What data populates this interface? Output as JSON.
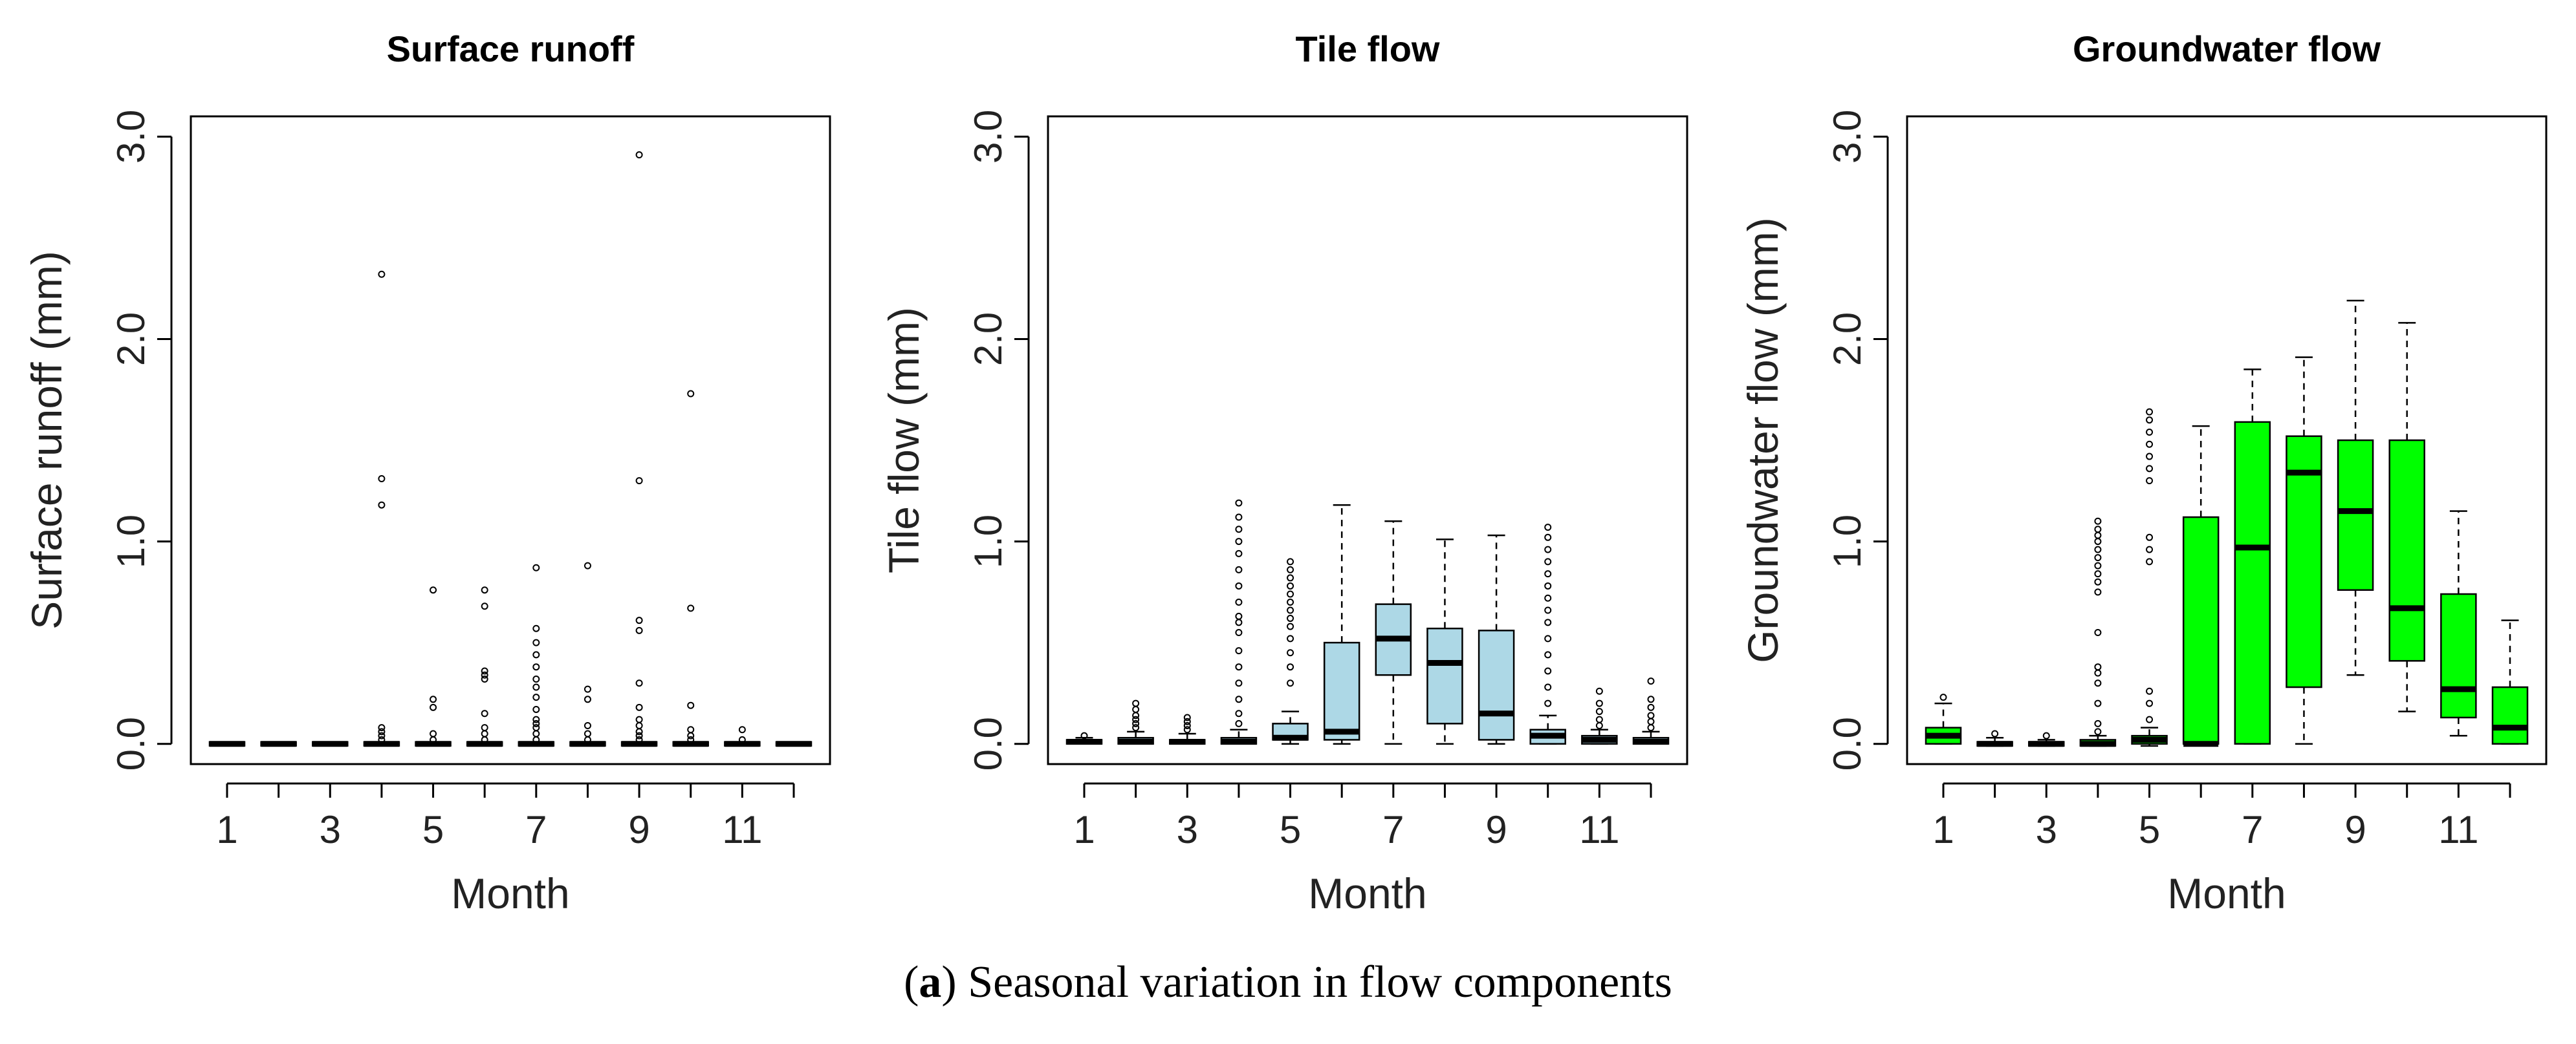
{
  "caption": {
    "letter": "a",
    "text": "Seasonal variation in flow components"
  },
  "chart_data": [
    {
      "type": "box",
      "title": "Surface runoff",
      "xlabel": "Month",
      "ylabel": "Surface runoff (mm)",
      "ylim": [
        -0.1,
        3.1
      ],
      "yticks": [
        0.0,
        1.0,
        2.0,
        3.0
      ],
      "ytick_labels": [
        "0.0",
        "1.0",
        "2.0",
        "3.0"
      ],
      "xtick_labels": [
        "1",
        "3",
        "5",
        "7",
        "9",
        "11"
      ],
      "fill": "#ffffff",
      "boxes": [
        {
          "month": 1,
          "q1": 0,
          "median": 0,
          "q3": 0,
          "whisker_low": 0,
          "whisker_high": 0,
          "outliers": []
        },
        {
          "month": 2,
          "q1": 0,
          "median": 0,
          "q3": 0,
          "whisker_low": 0,
          "whisker_high": 0,
          "outliers": []
        },
        {
          "month": 3,
          "q1": 0,
          "median": 0,
          "q3": 0,
          "whisker_low": 0,
          "whisker_high": 0,
          "outliers": []
        },
        {
          "month": 4,
          "q1": 0,
          "median": 0,
          "q3": 0,
          "whisker_low": 0,
          "whisker_high": 0,
          "outliers": [
            0.02,
            0.04,
            0.06,
            0.08,
            1.18,
            1.31,
            2.32
          ]
        },
        {
          "month": 5,
          "q1": 0,
          "median": 0,
          "q3": 0,
          "whisker_low": 0,
          "whisker_high": 0,
          "outliers": [
            0.02,
            0.05,
            0.18,
            0.22,
            0.76
          ]
        },
        {
          "month": 6,
          "q1": 0,
          "median": 0,
          "q3": 0,
          "whisker_low": 0,
          "whisker_high": 0,
          "outliers": [
            0.02,
            0.05,
            0.08,
            0.15,
            0.32,
            0.34,
            0.36,
            0.68,
            0.76
          ]
        },
        {
          "month": 7,
          "q1": 0,
          "median": 0,
          "q3": 0,
          "whisker_low": 0,
          "whisker_high": 0,
          "outliers": [
            0.02,
            0.05,
            0.08,
            0.1,
            0.12,
            0.17,
            0.23,
            0.28,
            0.32,
            0.38,
            0.44,
            0.5,
            0.57,
            0.87
          ]
        },
        {
          "month": 8,
          "q1": 0,
          "median": 0,
          "q3": 0,
          "whisker_low": 0,
          "whisker_high": 0,
          "outliers": [
            0.02,
            0.05,
            0.09,
            0.22,
            0.27,
            0.88
          ]
        },
        {
          "month": 9,
          "q1": 0,
          "median": 0,
          "q3": 0,
          "whisker_low": 0,
          "whisker_high": 0,
          "outliers": [
            0.02,
            0.04,
            0.06,
            0.09,
            0.12,
            0.18,
            0.3,
            0.56,
            0.61,
            1.3,
            2.91
          ]
        },
        {
          "month": 10,
          "q1": 0,
          "median": 0,
          "q3": 0,
          "whisker_low": 0,
          "whisker_high": 0,
          "outliers": [
            0.02,
            0.04,
            0.07,
            0.19,
            0.67,
            1.73
          ]
        },
        {
          "month": 11,
          "q1": 0,
          "median": 0,
          "q3": 0,
          "whisker_low": 0,
          "whisker_high": 0,
          "outliers": [
            0.02,
            0.07
          ]
        },
        {
          "month": 12,
          "q1": 0,
          "median": 0,
          "q3": 0,
          "whisker_low": 0,
          "whisker_high": 0,
          "outliers": []
        }
      ]
    },
    {
      "type": "box",
      "title": "Tile flow",
      "xlabel": "Month",
      "ylabel": "Tile flow (mm)",
      "ylim": [
        -0.1,
        3.1
      ],
      "yticks": [
        0.0,
        1.0,
        2.0,
        3.0
      ],
      "ytick_labels": [
        "0.0",
        "1.0",
        "2.0",
        "3.0"
      ],
      "xtick_labels": [
        "1",
        "3",
        "5",
        "7",
        "9",
        "11"
      ],
      "fill": "#add8e6",
      "boxes": [
        {
          "month": 1,
          "q1": 0.0,
          "median": 0.01,
          "q3": 0.02,
          "whisker_low": 0.0,
          "whisker_high": 0.03,
          "outliers": [
            0.04
          ]
        },
        {
          "month": 2,
          "q1": 0.0,
          "median": 0.01,
          "q3": 0.03,
          "whisker_low": 0.0,
          "whisker_high": 0.06,
          "outliers": [
            0.08,
            0.1,
            0.12,
            0.14,
            0.17,
            0.2
          ]
        },
        {
          "month": 3,
          "q1": 0.0,
          "median": 0.01,
          "q3": 0.02,
          "whisker_low": 0.0,
          "whisker_high": 0.05,
          "outliers": [
            0.07,
            0.09,
            0.11,
            0.13
          ]
        },
        {
          "month": 4,
          "q1": 0.0,
          "median": 0.01,
          "q3": 0.03,
          "whisker_low": 0.0,
          "whisker_high": 0.07,
          "outliers": [
            0.1,
            0.15,
            0.22,
            0.3,
            0.38,
            0.46,
            0.55,
            0.6,
            0.63,
            0.7,
            0.78,
            0.86,
            0.94,
            1.0,
            1.06,
            1.12,
            1.19
          ]
        },
        {
          "month": 5,
          "q1": 0.02,
          "median": 0.03,
          "q3": 0.1,
          "whisker_low": 0.0,
          "whisker_high": 0.16,
          "outliers": [
            0.3,
            0.38,
            0.45,
            0.52,
            0.58,
            0.62,
            0.66,
            0.7,
            0.74,
            0.78,
            0.82,
            0.86,
            0.9
          ]
        },
        {
          "month": 6,
          "q1": 0.02,
          "median": 0.06,
          "q3": 0.5,
          "whisker_low": 0.0,
          "whisker_high": 1.18,
          "outliers": []
        },
        {
          "month": 7,
          "q1": 0.34,
          "median": 0.52,
          "q3": 0.69,
          "whisker_low": 0.0,
          "whisker_high": 1.1,
          "outliers": []
        },
        {
          "month": 8,
          "q1": 0.1,
          "median": 0.4,
          "q3": 0.57,
          "whisker_low": 0.0,
          "whisker_high": 1.01,
          "outliers": []
        },
        {
          "month": 9,
          "q1": 0.02,
          "median": 0.15,
          "q3": 0.56,
          "whisker_low": 0.0,
          "whisker_high": 1.03,
          "outliers": []
        },
        {
          "month": 10,
          "q1": 0.0,
          "median": 0.04,
          "q3": 0.07,
          "whisker_low": 0.0,
          "whisker_high": 0.14,
          "outliers": [
            0.2,
            0.28,
            0.36,
            0.44,
            0.52,
            0.6,
            0.66,
            0.72,
            0.78,
            0.84,
            0.9,
            0.96,
            1.02,
            1.07
          ]
        },
        {
          "month": 11,
          "q1": 0.0,
          "median": 0.02,
          "q3": 0.04,
          "whisker_low": 0.0,
          "whisker_high": 0.07,
          "outliers": [
            0.09,
            0.12,
            0.16,
            0.2,
            0.26
          ]
        },
        {
          "month": 12,
          "q1": 0.0,
          "median": 0.01,
          "q3": 0.03,
          "whisker_low": 0.0,
          "whisker_high": 0.06,
          "outliers": [
            0.08,
            0.11,
            0.14,
            0.18,
            0.22,
            0.31
          ]
        }
      ]
    },
    {
      "type": "box",
      "title": "Groundwater flow",
      "xlabel": "Month",
      "ylabel": "Groundwater flow (mm)",
      "ylim": [
        -0.1,
        3.1
      ],
      "yticks": [
        0.0,
        1.0,
        2.0,
        3.0
      ],
      "ytick_labels": [
        "0.0",
        "1.0",
        "2.0",
        "3.0"
      ],
      "xtick_labels": [
        "1",
        "3",
        "5",
        "7",
        "9",
        "11"
      ],
      "fill": "#00ff00",
      "boxes": [
        {
          "month": 1,
          "q1": 0.0,
          "median": 0.04,
          "q3": 0.08,
          "whisker_low": 0.0,
          "whisker_high": 0.2,
          "outliers": [
            0.23
          ]
        },
        {
          "month": 2,
          "q1": -0.01,
          "median": 0.0,
          "q3": 0.01,
          "whisker_low": -0.01,
          "whisker_high": 0.03,
          "outliers": [
            0.05
          ]
        },
        {
          "month": 3,
          "q1": -0.01,
          "median": 0.0,
          "q3": 0.01,
          "whisker_low": -0.01,
          "whisker_high": 0.02,
          "outliers": [
            0.04
          ]
        },
        {
          "month": 4,
          "q1": -0.01,
          "median": 0.0,
          "q3": 0.02,
          "whisker_low": -0.01,
          "whisker_high": 0.04,
          "outliers": [
            0.06,
            0.1,
            0.2,
            0.3,
            0.35,
            0.38,
            0.55,
            0.75,
            0.8,
            0.84,
            0.88,
            0.92,
            0.96,
            1.0,
            1.03,
            1.06,
            1.1
          ]
        },
        {
          "month": 5,
          "q1": 0.0,
          "median": 0.02,
          "q3": 0.04,
          "whisker_low": -0.01,
          "whisker_high": 0.08,
          "outliers": [
            0.12,
            0.2,
            0.26,
            0.9,
            0.96,
            1.02,
            1.3,
            1.36,
            1.42,
            1.48,
            1.54,
            1.6,
            1.64
          ]
        },
        {
          "month": 6,
          "q1": 0.0,
          "median": 0.0,
          "q3": 1.12,
          "whisker_low": 0.0,
          "whisker_high": 1.57,
          "outliers": []
        },
        {
          "month": 7,
          "q1": 0.0,
          "median": 0.97,
          "q3": 1.59,
          "whisker_low": 0.0,
          "whisker_high": 1.85,
          "outliers": []
        },
        {
          "month": 8,
          "q1": 0.28,
          "median": 1.34,
          "q3": 1.52,
          "whisker_low": 0.0,
          "whisker_high": 1.91,
          "outliers": []
        },
        {
          "month": 9,
          "q1": 0.76,
          "median": 1.15,
          "q3": 1.5,
          "whisker_low": 0.34,
          "whisker_high": 2.19,
          "outliers": []
        },
        {
          "month": 10,
          "q1": 0.41,
          "median": 0.67,
          "q3": 1.5,
          "whisker_low": 0.16,
          "whisker_high": 2.08,
          "outliers": []
        },
        {
          "month": 11,
          "q1": 0.13,
          "median": 0.27,
          "q3": 0.74,
          "whisker_low": 0.04,
          "whisker_high": 1.15,
          "outliers": []
        },
        {
          "month": 12,
          "q1": 0.0,
          "median": 0.08,
          "q3": 0.28,
          "whisker_low": 0.0,
          "whisker_high": 0.61,
          "outliers": []
        }
      ]
    }
  ]
}
